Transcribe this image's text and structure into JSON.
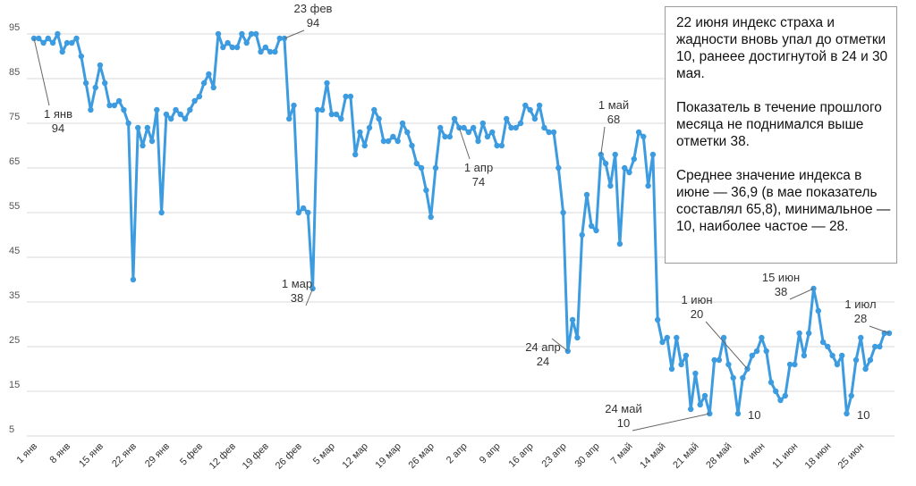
{
  "chart_data": {
    "type": "line",
    "title": "",
    "xlabel": "",
    "ylabel": "",
    "ylim": [
      5,
      95
    ],
    "yticks": [
      5,
      15,
      25,
      35,
      45,
      55,
      65,
      75,
      85,
      95
    ],
    "grid": true,
    "x_tick_labels": [
      "1 янв",
      "8 янв",
      "15 янв",
      "22 янв",
      "29 янв",
      "5 фев",
      "12 фев",
      "19 фев",
      "26 фев",
      "5 мар",
      "12 мар",
      "19 мар",
      "26 мар",
      "2 апр",
      "9 апр",
      "16 апр",
      "23 апр",
      "30 апр",
      "7 май",
      "14 май",
      "21 май",
      "28 май",
      "4 июн",
      "11 июн",
      "18 июн",
      "25 июн"
    ],
    "series": [
      {
        "name": "Индекс страха и жадности",
        "color": "#3d9be0",
        "values": [
          94,
          94,
          93,
          94,
          93,
          95,
          91,
          93,
          93,
          94,
          90,
          84,
          78,
          83,
          88,
          84,
          79,
          79,
          80,
          78,
          75,
          40,
          74,
          70,
          74,
          71,
          78,
          55,
          77,
          76,
          78,
          77,
          76,
          78,
          80,
          81,
          84,
          86,
          83,
          95,
          92,
          93,
          92,
          92,
          95,
          93,
          95,
          95,
          91,
          92,
          91,
          91,
          94,
          94,
          76,
          79,
          55,
          56,
          55,
          38,
          78,
          78,
          84,
          77,
          77,
          76,
          81,
          81,
          68,
          73,
          70,
          74,
          78,
          76,
          71,
          71,
          72,
          71,
          75,
          73,
          70,
          66,
          65,
          60,
          54,
          65,
          74,
          72,
          72,
          76,
          74,
          74,
          73,
          74,
          71,
          75,
          72,
          73,
          70,
          70,
          76,
          74,
          74,
          75,
          79,
          78,
          76,
          79,
          74,
          73,
          73,
          65,
          55,
          24,
          31,
          27,
          50,
          59,
          52,
          51,
          68,
          66,
          61,
          68,
          48,
          65,
          64,
          67,
          73,
          72,
          61,
          68,
          31,
          26,
          27,
          20,
          27,
          21,
          23,
          11,
          19,
          12,
          14,
          10,
          22,
          22,
          27,
          21,
          18,
          10,
          18,
          20,
          23,
          24,
          27,
          24,
          17,
          15,
          13,
          14,
          21,
          21,
          28,
          23,
          28,
          38,
          33,
          26,
          25,
          23,
          21,
          23,
          10,
          14,
          22,
          27,
          20,
          22,
          25,
          25,
          28,
          28
        ]
      }
    ],
    "annotations": [
      {
        "date": "1 янв",
        "value": 94,
        "index": 0
      },
      {
        "date": "23 фев",
        "value": 94,
        "index": 53
      },
      {
        "date": "1 мар",
        "value": 38,
        "index": 59
      },
      {
        "date": "1 апр",
        "value": 74,
        "index": 90
      },
      {
        "date": "24 апр",
        "value": 24,
        "index": 113
      },
      {
        "date": "1 май",
        "value": 68,
        "index": 120
      },
      {
        "date": "24 май",
        "value": 10,
        "index": 143
      },
      {
        "date": "1 июн",
        "value": 20,
        "index": 151
      },
      {
        "date": "",
        "value": 10,
        "index": 149
      },
      {
        "date": "15 июн",
        "value": 38,
        "index": 165
      },
      {
        "date": "",
        "value": 10,
        "index": 172
      },
      {
        "date": "1 июл",
        "value": 28,
        "index": 181
      }
    ]
  },
  "note": {
    "paragraphs": [
      "22 июня индекс страха и жадности вновь упал до отметки 10, ранеее достигнутой в 24 и 30 мая.",
      "Показатель в течение прошлого месяца не поднимался выше отметки 38.",
      "Среднее значение индекса в июне — 36,9 (в мае показатель составлял 65,8), минимальное — 10, наиболее частое — 28."
    ]
  }
}
